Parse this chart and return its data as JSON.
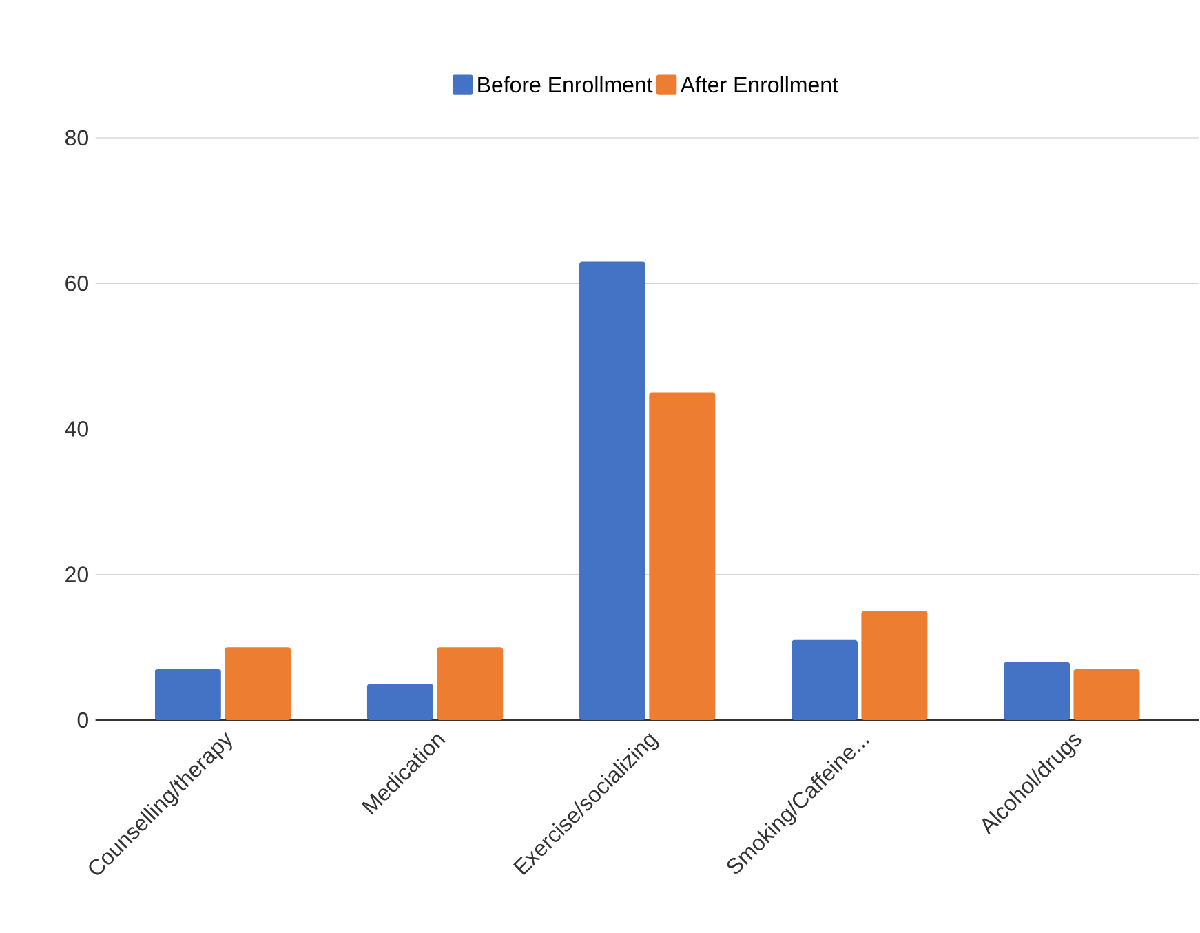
{
  "chart_data": {
    "type": "bar",
    "categories": [
      "Counselling/therapy",
      "Medication",
      "Exercise/socializing",
      "Smoking/Caffeine...",
      "Alcohol/drugs"
    ],
    "series": [
      {
        "name": "Before Enrollment",
        "color": "#4472c4",
        "values": [
          7,
          5,
          63,
          11,
          8
        ]
      },
      {
        "name": "After Enrollment",
        "color": "#ed7d31",
        "values": [
          10,
          10,
          45,
          15,
          7
        ]
      }
    ],
    "ylim": [
      0,
      80
    ],
    "yticks": [
      0,
      20,
      40,
      60,
      80
    ],
    "grid": "y",
    "legend": "top"
  }
}
